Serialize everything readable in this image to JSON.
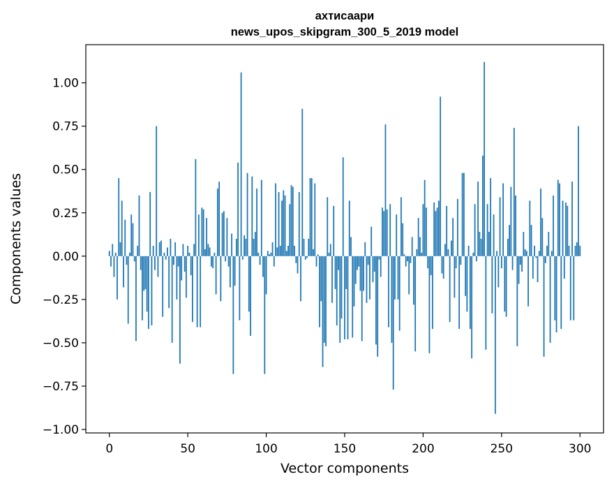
{
  "chart_data": {
    "type": "bar",
    "title_line1": "ахтисаари",
    "title_line2": "news_upos_skipgram_300_5_2019 model",
    "xlabel": "Vector components",
    "ylabel": "Components values",
    "xlim": [
      -15,
      315
    ],
    "ylim": [
      -1.02,
      1.22
    ],
    "xticks": [
      0,
      50,
      100,
      150,
      200,
      250,
      300
    ],
    "xtick_labels": [
      "0",
      "50",
      "100",
      "150",
      "200",
      "250",
      "300"
    ],
    "yticks": [
      -1.0,
      -0.75,
      -0.5,
      -0.25,
      0.0,
      0.25,
      0.5,
      0.75,
      1.0
    ],
    "ytick_labels": [
      "−1.00",
      "−0.75",
      "−0.50",
      "−0.25",
      "0.00",
      "0.25",
      "0.50",
      "0.75",
      "1.00"
    ],
    "bar_color": "#1f77b4",
    "values": [
      0.03,
      -0.06,
      0.07,
      -0.12,
      0.02,
      -0.25,
      0.45,
      0.08,
      0.32,
      -0.18,
      0.21,
      -0.05,
      -0.39,
      0.02,
      0.24,
      0.19,
      -0.03,
      -0.49,
      0.06,
      0.35,
      -0.08,
      -0.37,
      -0.2,
      -0.19,
      -0.32,
      -0.42,
      0.37,
      -0.4,
      0.06,
      -0.08,
      0.75,
      -0.12,
      0.08,
      0.09,
      -0.35,
      0.02,
      -0.02,
      0.05,
      -0.3,
      0.1,
      -0.5,
      -0.05,
      0.08,
      -0.25,
      -0.06,
      -0.62,
      -0.14,
      0.07,
      -0.09,
      -0.24,
      0.06,
      0.02,
      -0.11,
      -0.38,
      0.07,
      0.56,
      -0.41,
      0.24,
      -0.41,
      0.28,
      0.27,
      0.04,
      0.22,
      0.07,
      0.05,
      -0.06,
      -0.07,
      0.02,
      -0.22,
      0.39,
      0.43,
      -0.26,
      0.25,
      0.26,
      -0.03,
      0.22,
      -0.06,
      -0.18,
      0.13,
      -0.68,
      -0.17,
      0.1,
      0.54,
      -0.37,
      1.06,
      -0.02,
      0.12,
      0.1,
      0.48,
      -0.32,
      -0.46,
      0.46,
      0.1,
      0.14,
      0.39,
      0.02,
      -0.05,
      0.44,
      -0.12,
      -0.68,
      -0.22,
      0.03,
      0.01,
      0.02,
      0.08,
      -0.06,
      0.42,
      0.05,
      0.37,
      0.06,
      0.32,
      0.38,
      0.35,
      0.03,
      0.06,
      0.3,
      0.41,
      0.4,
      0.06,
      -0.04,
      -0.1,
      0.37,
      -0.26,
      0.85,
      0.1,
      -0.02,
      -0.01,
      0.1,
      0.45,
      0.45,
      0.04,
      0.42,
      -0.06,
      0.01,
      -0.41,
      -0.26,
      -0.64,
      -0.5,
      -0.52,
      0.34,
      0.02,
      0.07,
      -0.27,
      0.29,
      -0.19,
      -0.4,
      -0.08,
      -0.5,
      -0.36,
      0.57,
      -0.48,
      -0.19,
      -0.48,
      0.32,
      0.11,
      -0.47,
      -0.29,
      -0.16,
      -0.08,
      -0.06,
      -0.2,
      -0.49,
      -0.2,
      0.08,
      -0.27,
      -0.05,
      -0.25,
      0.17,
      -0.15,
      -0.09,
      -0.51,
      -0.58,
      -0.02,
      -0.12,
      0.28,
      0.26,
      0.76,
      0.27,
      -0.41,
      0.3,
      -0.5,
      -0.77,
      -0.25,
      0.24,
      -0.25,
      -0.43,
      0.34,
      0.19,
      0.01,
      -0.06,
      -0.03,
      -0.22,
      -0.04,
      0.11,
      -0.28,
      -0.55,
      0.04,
      0.22,
      0.11,
      0.02,
      0.3,
      0.44,
      0.28,
      -0.07,
      -0.56,
      -0.11,
      -0.42,
      0.31,
      0.26,
      0.28,
      0.32,
      0.92,
      -0.1,
      -0.13,
      0.07,
      0.29,
      0.04,
      -0.38,
      0.09,
      0.22,
      -0.24,
      -0.07,
      0.33,
      -0.42,
      -0.05,
      0.48,
      0.48,
      -0.23,
      -0.32,
      0.06,
      -0.42,
      -0.59,
      0.02,
      0.3,
      -0.03,
      0.43,
      0.14,
      0.1,
      0.58,
      1.12,
      -0.54,
      0.3,
      0.14,
      0.45,
      -0.33,
      0.24,
      -0.91,
      0.03,
      -0.18,
      0.34,
      -0.07,
      0.42,
      -0.32,
      -0.35,
      0.1,
      0.18,
      0.4,
      -0.08,
      0.74,
      0.35,
      -0.52,
      -0.16,
      -0.05,
      -0.09,
      0.14,
      0.04,
      0.03,
      -0.29,
      0.32,
      0.18,
      -0.13,
      0.06,
      -0.01,
      -0.15,
      0.03,
      0.39,
      0.22,
      -0.58,
      -0.04,
      0.06,
      0.14,
      -0.5,
      0.03,
      0.35,
      -0.37,
      -0.44,
      0.44,
      0.42,
      -0.42,
      0.32,
      -0.13,
      0.31,
      0.29,
      0.06,
      -0.37,
      0.43,
      -0.37,
      0.06,
      0.08,
      0.75,
      0.06
    ]
  }
}
